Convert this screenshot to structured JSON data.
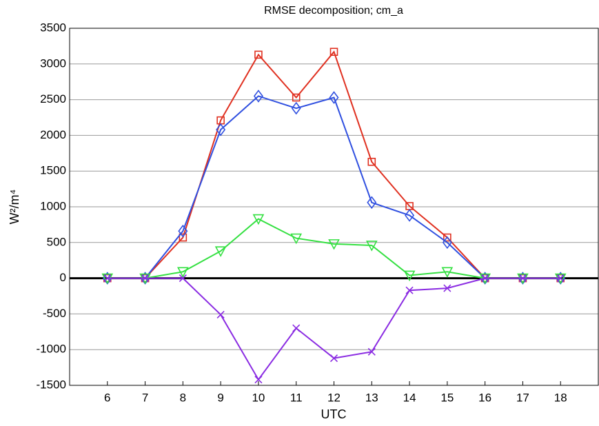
{
  "chart_data": {
    "type": "line",
    "title": "RMSE decomposition; cm_a",
    "xlabel": "UTC",
    "ylabel": "W²/m⁴",
    "x": [
      6,
      7,
      8,
      9,
      10,
      11,
      12,
      13,
      14,
      15,
      16,
      17,
      18
    ],
    "xlim": [
      5,
      19
    ],
    "xticks": [
      6,
      7,
      8,
      9,
      10,
      11,
      12,
      13,
      14,
      15,
      16,
      17,
      18
    ],
    "ylim": [
      -1500,
      3500
    ],
    "yticks": [
      -1500,
      -1000,
      -500,
      0,
      500,
      1000,
      1500,
      2000,
      2500,
      3000,
      3500
    ],
    "grid": true,
    "zero_line": true,
    "series": [
      {
        "color": "#e03020",
        "marker": "square",
        "values": [
          0,
          0,
          570,
          2210,
          3130,
          2530,
          3170,
          1630,
          1010,
          570,
          0,
          0,
          0
        ]
      },
      {
        "color": "#2f4fe0",
        "marker": "diamond",
        "values": [
          0,
          0,
          660,
          2080,
          2550,
          2380,
          2530,
          1060,
          880,
          500,
          0,
          0,
          0
        ]
      },
      {
        "color": "#33e040",
        "marker": "triangle-down",
        "values": [
          0,
          0,
          90,
          380,
          830,
          560,
          480,
          460,
          40,
          90,
          0,
          0,
          0
        ]
      },
      {
        "color": "#8a2be2",
        "marker": "x",
        "values": [
          0,
          0,
          0,
          -510,
          -1420,
          -700,
          -1120,
          -1030,
          -170,
          -140,
          0,
          0,
          0
        ]
      }
    ]
  }
}
